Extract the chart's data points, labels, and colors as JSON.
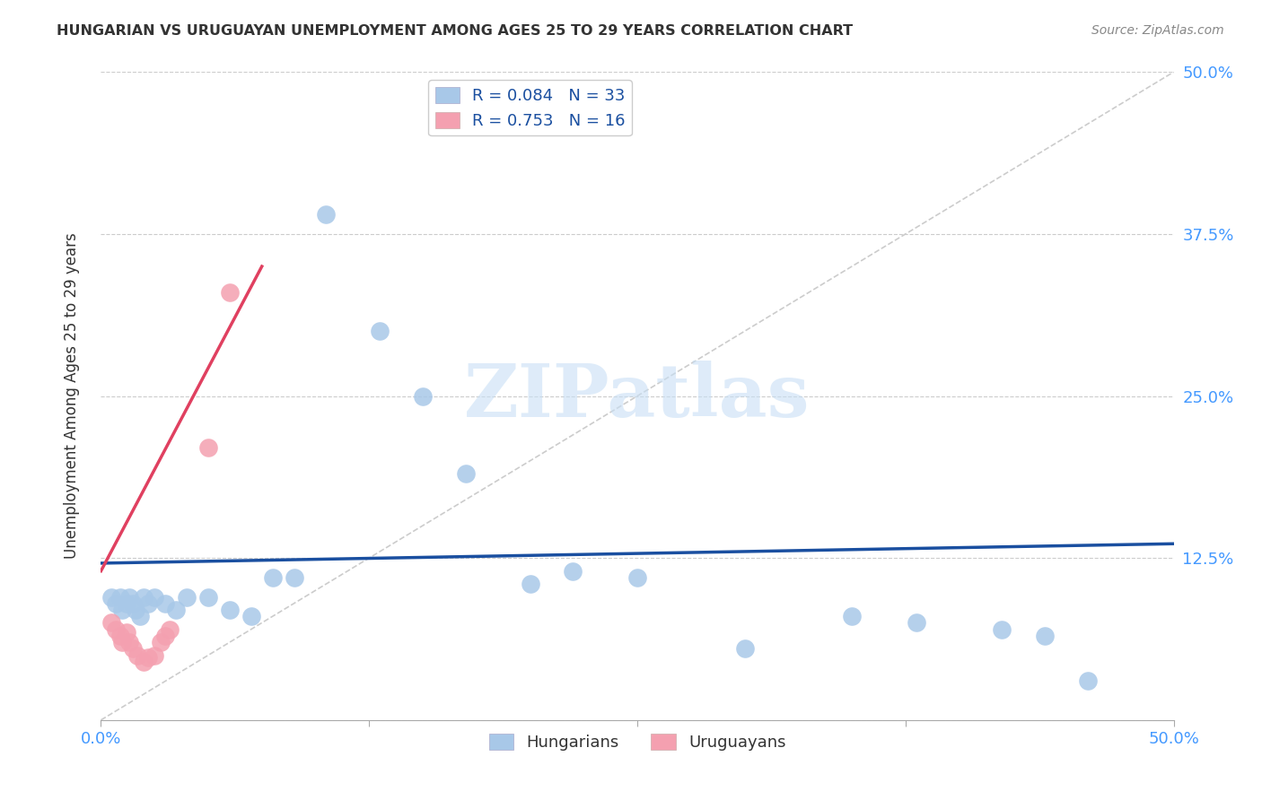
{
  "title": "HUNGARIAN VS URUGUAYAN UNEMPLOYMENT AMONG AGES 25 TO 29 YEARS CORRELATION CHART",
  "source": "Source: ZipAtlas.com",
  "ylabel": "Unemployment Among Ages 25 to 29 years",
  "xlim": [
    0.0,
    0.5
  ],
  "ylim": [
    0.0,
    0.5
  ],
  "xticks": [
    0.0,
    0.125,
    0.25,
    0.375,
    0.5
  ],
  "yticks": [
    0.0,
    0.125,
    0.25,
    0.375,
    0.5
  ],
  "xtick_labels": [
    "0.0%",
    "",
    "",
    "",
    "50.0%"
  ],
  "ytick_labels_right": [
    "",
    "12.5%",
    "25.0%",
    "37.5%",
    "50.0%"
  ],
  "hungarian_color": "#a8c8e8",
  "uruguayan_color": "#f4a0b0",
  "hungarian_R": 0.084,
  "hungarian_N": 33,
  "uruguayan_R": 0.753,
  "uruguayan_N": 16,
  "blue_line_color": "#1a4fa0",
  "pink_line_color": "#e04060",
  "diagonal_color": "#cccccc",
  "watermark_text": "ZIPatlas",
  "legend_text_color": "#1a4fa0",
  "tick_label_color": "#4499ff",
  "hung_x": [
    0.005,
    0.007,
    0.009,
    0.01,
    0.012,
    0.013,
    0.015,
    0.016,
    0.018,
    0.02,
    0.022,
    0.025,
    0.03,
    0.035,
    0.04,
    0.05,
    0.06,
    0.07,
    0.08,
    0.09,
    0.105,
    0.13,
    0.15,
    0.17,
    0.2,
    0.22,
    0.25,
    0.3,
    0.35,
    0.38,
    0.42,
    0.44,
    0.46
  ],
  "hung_y": [
    0.095,
    0.09,
    0.095,
    0.085,
    0.09,
    0.095,
    0.09,
    0.085,
    0.08,
    0.095,
    0.09,
    0.095,
    0.09,
    0.085,
    0.095,
    0.095,
    0.085,
    0.08,
    0.11,
    0.11,
    0.39,
    0.3,
    0.25,
    0.19,
    0.105,
    0.115,
    0.11,
    0.055,
    0.08,
    0.075,
    0.07,
    0.065,
    0.03
  ],
  "urug_x": [
    0.005,
    0.007,
    0.009,
    0.01,
    0.012,
    0.013,
    0.015,
    0.017,
    0.02,
    0.022,
    0.025,
    0.028,
    0.03,
    0.032,
    0.05,
    0.06
  ],
  "urug_y": [
    0.075,
    0.07,
    0.065,
    0.06,
    0.068,
    0.06,
    0.055,
    0.05,
    0.045,
    0.048,
    0.05,
    0.06,
    0.065,
    0.07,
    0.21,
    0.33
  ]
}
